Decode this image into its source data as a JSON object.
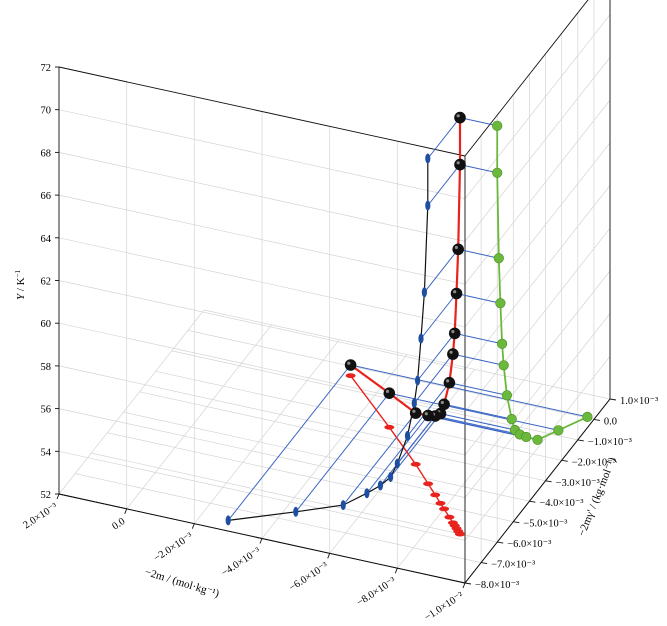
{
  "chart_data": {
    "type": "line3d",
    "axes": {
      "y_vertical": {
        "label_var": "Y",
        "label_unit": " / K",
        "label_sup": "−1",
        "ticks": [
          "52",
          "54",
          "56",
          "58",
          "60",
          "62",
          "64",
          "66",
          "68",
          "70",
          "72"
        ]
      },
      "x_left": {
        "label": "−2m / (mol·kg⁻¹)",
        "ticks": [
          "2.0×10⁻³",
          "0.0",
          "−2.0×10⁻³",
          "−4.0×10⁻³",
          "−6.0×10⁻³",
          "−8.0×10⁻³",
          "−1.0×10⁻²"
        ]
      },
      "z_right": {
        "label": "−2mγ' / (kg·mol⁻¹)",
        "ticks": [
          "1.0×10⁻³",
          "0.0",
          "−1.0×10⁻³",
          "−2.0×10⁻³",
          "−3.0×10⁻³",
          "−4.0×10⁻³",
          "−5.0×10⁻³",
          "−6.0×10⁻³",
          "−7.0×10⁻³",
          "−8.0×10⁻³"
        ]
      }
    },
    "series": [
      {
        "kind": "main-curve",
        "color": "#e8231d",
        "marker_color": "#111111",
        "points": [
          {
            "x": -0.0089,
            "z": -0.006,
            "y": 71.5
          },
          {
            "x": -0.0089,
            "z": -0.006,
            "y": 69.3
          },
          {
            "x": -0.0088,
            "z": -0.0059,
            "y": 65.2
          },
          {
            "x": -0.0087,
            "z": -0.0058,
            "y": 63.0
          },
          {
            "x": -0.0086,
            "z": -0.0057,
            "y": 61.0
          },
          {
            "x": -0.0085,
            "z": -0.0056,
            "y": 59.9
          },
          {
            "x": -0.0083,
            "z": -0.0054,
            "y": 58.3
          },
          {
            "x": -0.008,
            "z": -0.0051,
            "y": 56.9
          },
          {
            "x": -0.0078,
            "z": -0.0049,
            "y": 56.2
          },
          {
            "x": -0.0075,
            "z": -0.0046,
            "y": 55.7
          },
          {
            "x": -0.0071,
            "z": -0.0042,
            "y": 55.2
          },
          {
            "x": -0.0064,
            "z": -0.0035,
            "y": 54.4
          },
          {
            "x": -0.005,
            "z": -0.0022,
            "y": 53.6
          },
          {
            "x": -0.003,
            "z": -0.0004,
            "y": 52.5
          }
        ]
      },
      {
        "kind": "projection-yz",
        "color": "#6ab83c",
        "note": "projection on the back (x = -1.0E-2) plane",
        "from": "main-curve"
      },
      {
        "kind": "projection-xy",
        "color": "#1f4fa0",
        "note": "projection on the left (z = -8.0E-3) plane",
        "from": "main-curve"
      },
      {
        "kind": "projection-xz",
        "color": "#e8231d",
        "note": "projection on the floor (y = 52) plane",
        "from": "main-curve"
      }
    ],
    "projection_lines_color": "#3b66c4"
  }
}
